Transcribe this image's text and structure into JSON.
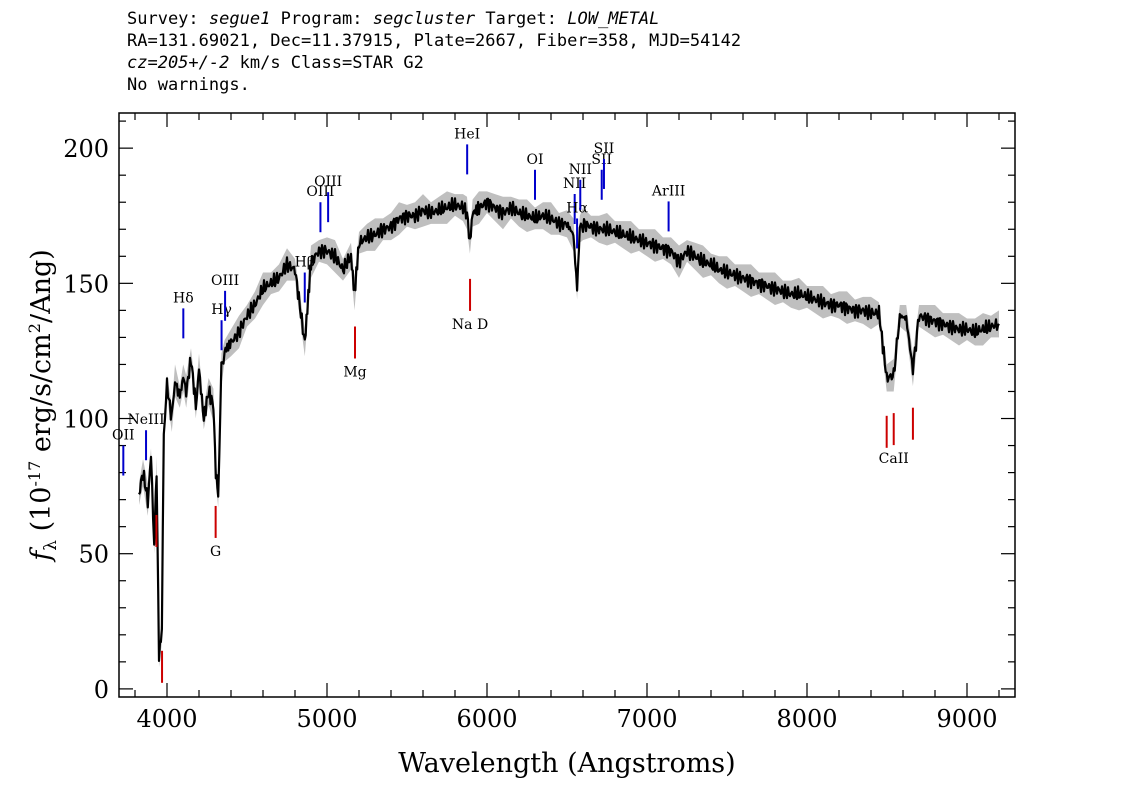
{
  "header": {
    "survey_label": "Survey:",
    "survey": "segue1",
    "program_label": "Program:",
    "program": "segcluster",
    "target_label": "Target:",
    "target": "LOW_METAL",
    "line2": "RA=131.69021, Dec=11.37915, Plate=2667, Fiber=358, MJD=54142",
    "cz_label": "cz=",
    "cz_value": "205+/-2",
    "cz_units": " km/s",
    "class_text": " Class=STAR G2",
    "warnings": "No warnings."
  },
  "chart_data": {
    "type": "line",
    "xlabel": "Wavelength (Angstroms)",
    "ylabel": "f_λ (10^-17 erg/s/cm^2/Ang)",
    "xlim": [
      3700,
      9300
    ],
    "ylim": [
      -3,
      213
    ],
    "xticks": [
      4000,
      5000,
      6000,
      7000,
      8000,
      9000
    ],
    "yticks": [
      0,
      50,
      100,
      150,
      200
    ],
    "colors": {
      "spectrum": "#000000",
      "error_band": "#bfbfbf",
      "emission": "#0000cc",
      "absorption": "#cc0000"
    },
    "series": [
      {
        "x": [
          3825,
          3850,
          3880,
          3900,
          3920,
          3935,
          3950,
          3968,
          3980,
          4000,
          4030,
          4050,
          4080,
          4101,
          4120,
          4150,
          4180,
          4200,
          4230,
          4260,
          4290,
          4305,
          4320,
          4340,
          4360,
          4400,
          4450,
          4500,
          4550,
          4600,
          4650,
          4700,
          4750,
          4800,
          4861,
          4900,
          4950,
          5000,
          5050,
          5100,
          5150,
          5172,
          5200,
          5250,
          5300,
          5350,
          5400,
          5450,
          5500,
          5550,
          5600,
          5650,
          5700,
          5750,
          5800,
          5850,
          5875,
          5893,
          5910,
          5950,
          6000,
          6050,
          6100,
          6150,
          6200,
          6250,
          6300,
          6350,
          6400,
          6450,
          6500,
          6540,
          6563,
          6580,
          6600,
          6650,
          6700,
          6750,
          6800,
          6850,
          6900,
          6950,
          7000,
          7050,
          7100,
          7150,
          7200,
          7250,
          7300,
          7350,
          7400,
          7450,
          7500,
          7550,
          7600,
          7650,
          7700,
          7750,
          7800,
          7850,
          7900,
          7950,
          8000,
          8050,
          8100,
          8150,
          8200,
          8250,
          8300,
          8350,
          8400,
          8450,
          8498,
          8542,
          8580,
          8620,
          8662,
          8700,
          8750,
          8800,
          8850,
          8900,
          8950,
          9000,
          9050,
          9100,
          9150,
          9200
        ],
        "y": [
          72,
          80,
          70,
          85,
          55,
          80,
          12,
          22,
          95,
          112,
          100,
          114,
          108,
          115,
          110,
          122,
          105,
          118,
          100,
          110,
          105,
          80,
          72,
          118,
          125,
          128,
          132,
          138,
          142,
          148,
          150,
          152,
          157,
          155,
          128,
          158,
          162,
          162,
          160,
          155,
          160,
          146,
          165,
          167,
          168,
          170,
          171,
          174,
          175,
          175,
          177,
          176,
          177,
          178,
          179,
          178,
          176,
          165,
          176,
          178,
          180,
          178,
          176,
          178,
          176,
          175,
          174,
          175,
          174,
          172,
          172,
          168,
          148,
          170,
          172,
          171,
          170,
          170,
          169,
          168,
          167,
          166,
          165,
          164,
          163,
          162,
          158,
          162,
          160,
          158,
          157,
          155,
          154,
          153,
          152,
          151,
          150,
          149,
          148,
          147,
          146,
          146,
          145,
          144,
          143,
          142,
          142,
          141,
          140,
          140,
          139,
          139,
          115,
          116,
          138,
          137,
          118,
          138,
          137,
          136,
          135,
          134,
          133,
          133,
          132,
          133,
          134,
          135
        ]
      }
    ],
    "annotations": {
      "emission_lines": [
        {
          "label": "OII",
          "x": 3727
        },
        {
          "label": "NeIII",
          "x": 3869
        },
        {
          "label": "Hδ",
          "x": 4102
        },
        {
          "label": "Hγ",
          "x": 4341
        },
        {
          "label": "OIII",
          "x": 4363
        },
        {
          "label": "Hβ",
          "x": 4861
        },
        {
          "label": "OIII",
          "x": 4959
        },
        {
          "label": "OIII",
          "x": 5007
        },
        {
          "label": "HeI",
          "x": 5876
        },
        {
          "label": "OI",
          "x": 6300
        },
        {
          "label": "NII",
          "x": 6548
        },
        {
          "label": "Hα",
          "x": 6563
        },
        {
          "label": "NII",
          "x": 6583
        },
        {
          "label": "SII",
          "x": 6717
        },
        {
          "label": "SII",
          "x": 6731
        },
        {
          "label": "ArIII",
          "x": 7135
        }
      ],
      "absorption_lines": [
        {
          "label": "",
          "x": 3934
        },
        {
          "label": "",
          "x": 3969
        },
        {
          "label": "G",
          "x": 4304
        },
        {
          "label": "Mg",
          "x": 5175
        },
        {
          "label": "Na D",
          "x": 5894
        },
        {
          "label": "",
          "x": 8498
        },
        {
          "label": "CaII",
          "x": 8542
        },
        {
          "label": "",
          "x": 8662
        }
      ]
    }
  }
}
